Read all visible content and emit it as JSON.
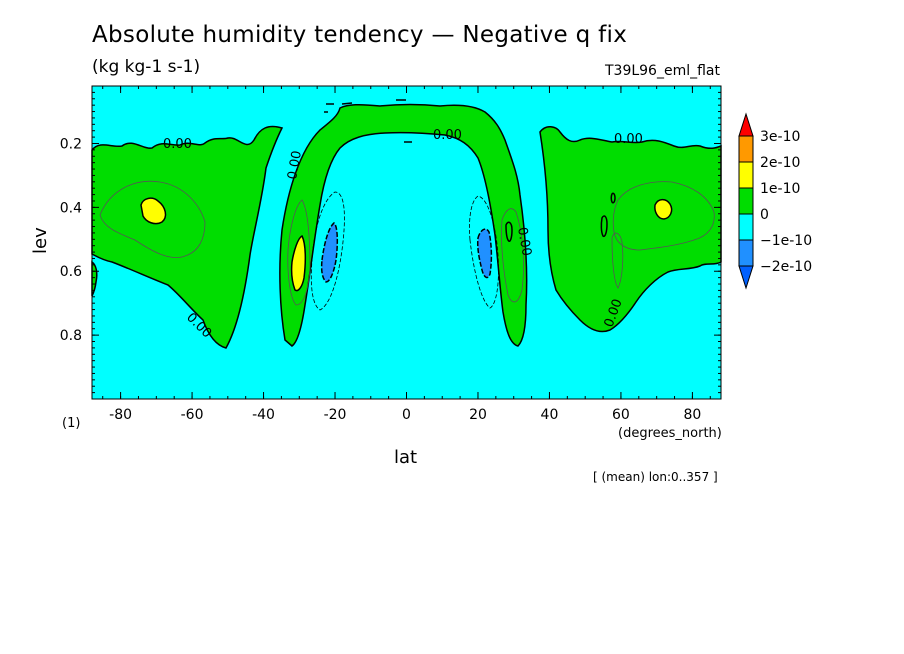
{
  "chart_data": {
    "type": "heatmap",
    "title": "Absolute humidity tendency — Negative q fix",
    "subtitle": "(kg kg-1 s-1)",
    "run_name": "T39L96_eml_flat",
    "xlabel": "lat",
    "x_units": "(degrees_north)",
    "ylabel": "lev",
    "y_units": "(1)",
    "footnote": "[ (mean) lon:0..357 ]",
    "xlim": [
      -88,
      88
    ],
    "ylim": [
      1.0,
      0.02
    ],
    "x_ticks": [
      -80,
      -60,
      -40,
      -20,
      0,
      20,
      40,
      60,
      80
    ],
    "y_ticks": [
      0.2,
      0.4,
      0.6,
      0.8
    ],
    "contour_labels": [
      "0.00",
      "0.00",
      "0.00",
      "0.00",
      "0.00",
      "0.00",
      "0.00"
    ],
    "colorbar": {
      "levels": [
        "3e-10",
        "2e-10",
        "1e-10",
        "0",
        "−1e-10",
        "−2e-10"
      ],
      "colors": [
        "#ff0000",
        "#ff9900",
        "#ffff00",
        "#00dd00",
        "#00ffff",
        "#2090ff",
        "#0060ff"
      ]
    },
    "background_color": "#00ffff",
    "regions": [
      {
        "name": "SH extratropical positive",
        "value_range": "0 to 1e-10",
        "lat_range": [
          -88,
          -55
        ],
        "lev_range": [
          0.17,
          0.82
        ]
      },
      {
        "name": "SH maximum",
        "value_range": "1e-10 to 2e-10",
        "lat": -72,
        "lev": 0.4
      },
      {
        "name": "Tropical upper band positive",
        "value_range": "0 to 1e-10",
        "lat_range": [
          -40,
          40
        ],
        "lev_range": [
          0.05,
          0.82
        ]
      },
      {
        "name": "SH subtropical maximum",
        "value_range": "1e-10 to 2e-10",
        "lat": -32,
        "lev": 0.55
      },
      {
        "name": "SH subtropical minimum",
        "value_range": "-2e-10 to -1e-10",
        "lat": -21,
        "lev": 0.55
      },
      {
        "name": "NH subtropical minimum",
        "value_range": "-2e-10 to -1e-10",
        "lat": 22,
        "lev": 0.53
      },
      {
        "name": "NH extratropical positive",
        "value_range": "0 to 1e-10",
        "lat_range": [
          38,
          88
        ],
        "lev_range": [
          0.15,
          0.8
        ]
      },
      {
        "name": "NH maximum",
        "value_range": "1e-10 to 2e-10",
        "lat": 72,
        "lev": 0.4
      }
    ]
  }
}
